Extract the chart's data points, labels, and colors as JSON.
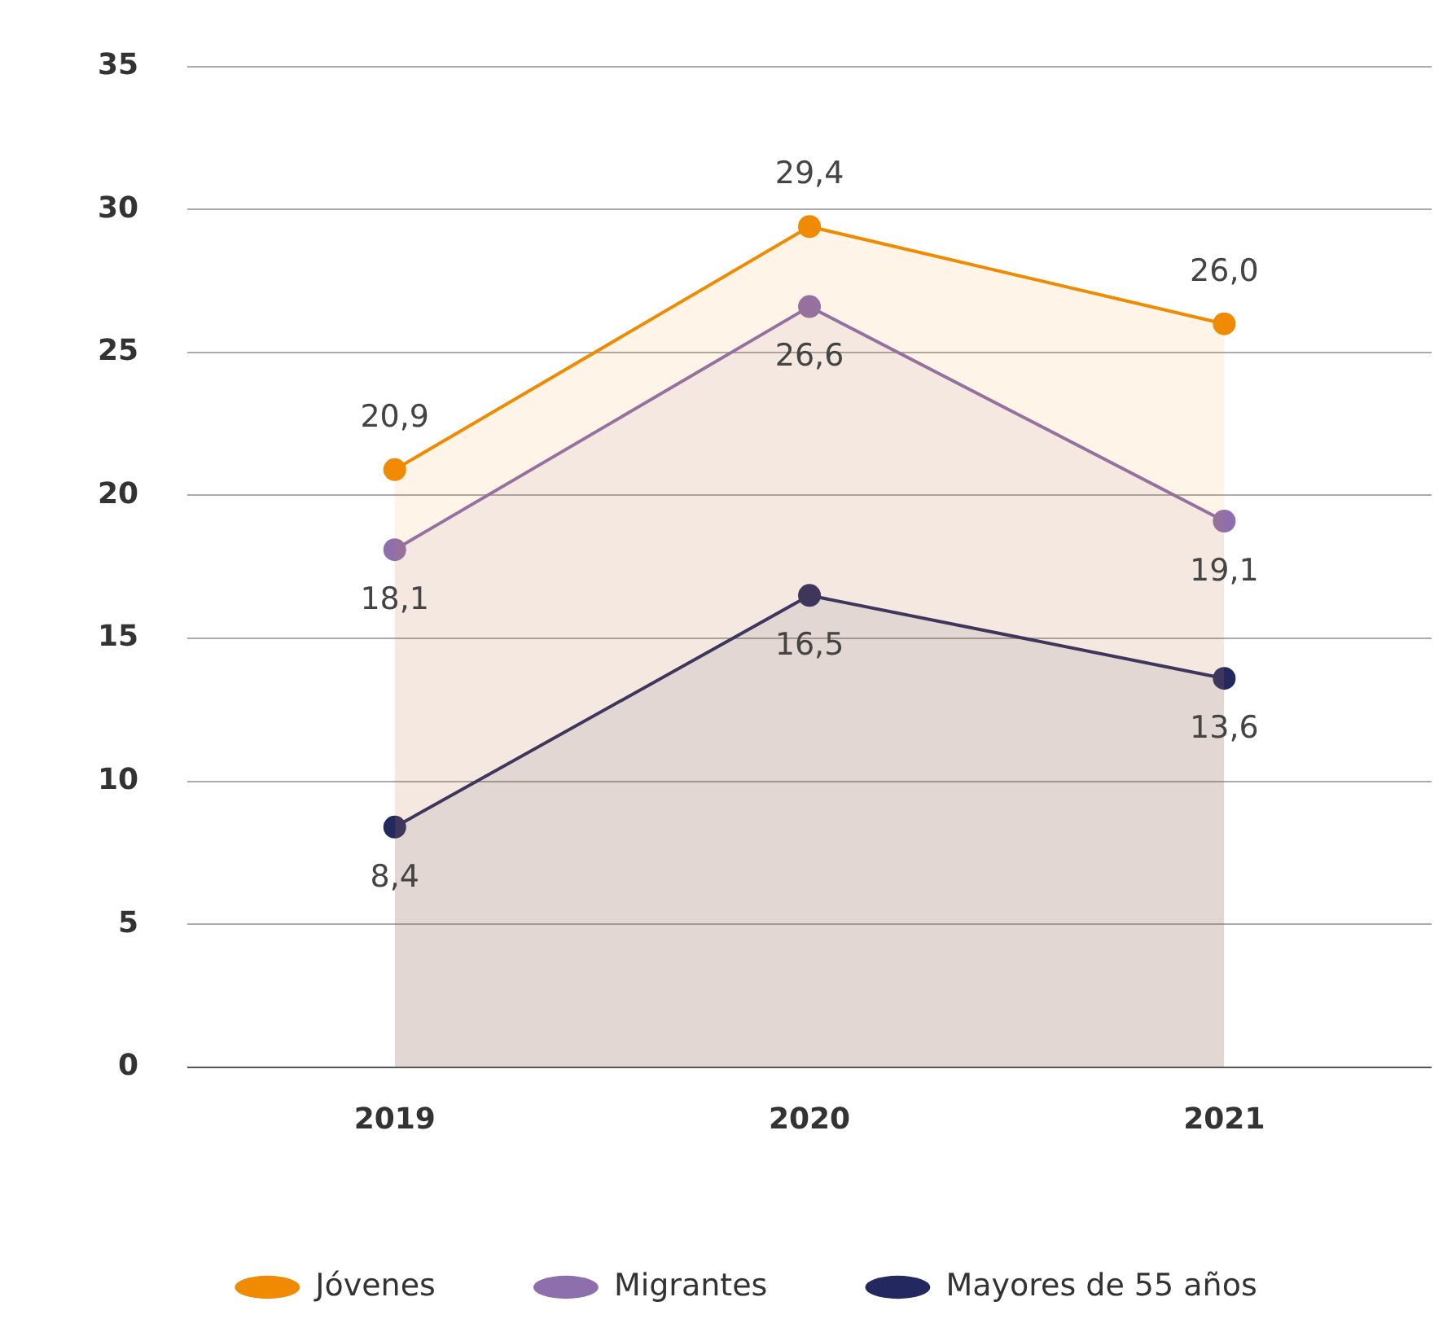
{
  "chart_data": {
    "type": "area",
    "categories": [
      "2019",
      "2020",
      "2021"
    ],
    "series": [
      {
        "name": "Jóvenes",
        "color": "#f08a00",
        "values": [
          20.9,
          29.4,
          26.0
        ],
        "value_labels": [
          "20,9",
          "29,4",
          "26,0"
        ]
      },
      {
        "name": "Migrantes",
        "color": "#8e6fae",
        "values": [
          18.1,
          26.6,
          19.1
        ],
        "value_labels": [
          "18,1",
          "26,6",
          "19,1"
        ]
      },
      {
        "name": "Mayores de 55 años",
        "color": "#23295e",
        "values": [
          8.4,
          16.5,
          13.6
        ],
        "value_labels": [
          "8,4",
          "16,5",
          "13,6"
        ]
      }
    ],
    "ylim": [
      0,
      35
    ],
    "yticks": [
      0,
      5,
      10,
      15,
      20,
      25,
      30,
      35
    ],
    "grid": "y",
    "legend": "bottom",
    "marker": "circle",
    "line_style": "solid"
  }
}
